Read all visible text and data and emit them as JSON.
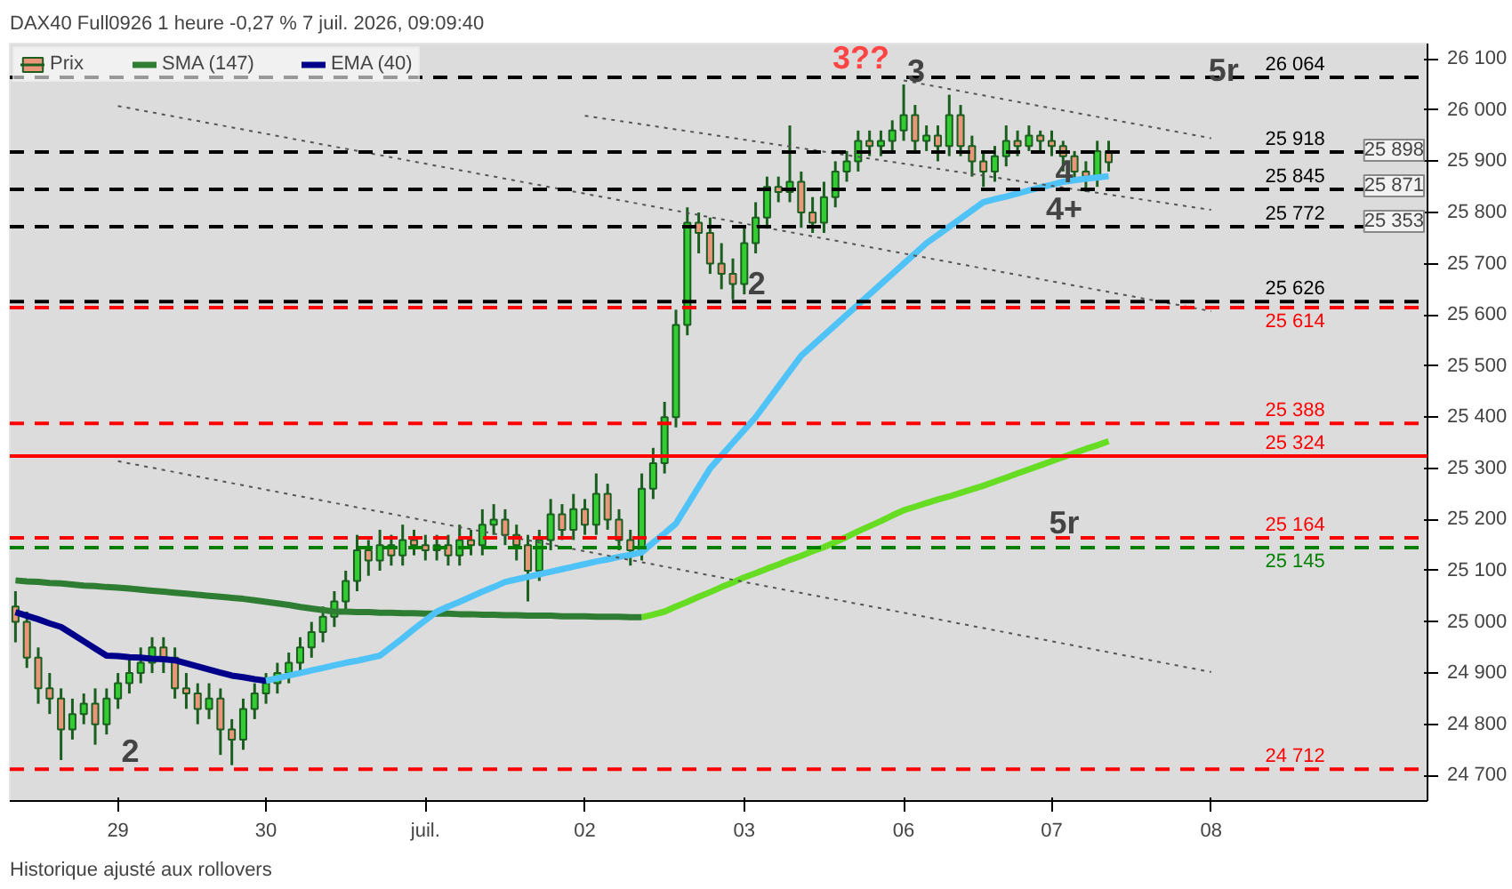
{
  "chart_data": {
    "type": "candlestick",
    "title": "DAX40 Full0926 1 heure -0,27 % 7 juil. 2026, 09:09:40",
    "categories": [
      null,
      null,
      null,
      null,
      null,
      null,
      null,
      null,
      null,
      "29",
      null,
      null,
      null,
      null,
      null,
      null,
      null,
      null,
      null,
      null,
      null,
      null,
      "30",
      null,
      null,
      null,
      null,
      null,
      null,
      null,
      null,
      null,
      null,
      null,
      null,
      null,
      "juil.",
      null,
      null,
      null,
      null,
      null,
      null,
      null,
      null,
      null,
      null,
      null,
      null,
      null,
      "02",
      null,
      null,
      null,
      null,
      null,
      null,
      null,
      null,
      null,
      null,
      null,
      null,
      null,
      "03",
      null,
      null,
      null,
      null,
      null,
      null,
      null,
      null,
      null,
      null,
      null,
      null,
      null,
      "06",
      null,
      null,
      null,
      null,
      null,
      null,
      null,
      null,
      null,
      null,
      null,
      null,
      "07",
      null,
      null,
      null,
      null,
      null,
      null,
      null,
      null,
      null,
      null,
      null,
      null,
      null,
      "08"
    ],
    "ylim": [
      24650,
      26130
    ],
    "yticks": [
      {
        "value": 24700,
        "label": "24 700"
      },
      {
        "value": 24800,
        "label": "24 800"
      },
      {
        "value": 24900,
        "label": "24 900"
      },
      {
        "value": 25000,
        "label": "25 000"
      },
      {
        "value": 25100,
        "label": "25 100"
      },
      {
        "value": 25200,
        "label": "25 200"
      },
      {
        "value": 25300,
        "label": "25 300"
      },
      {
        "value": 25400,
        "label": "25 400"
      },
      {
        "value": 25500,
        "label": "25 500"
      },
      {
        "value": 25600,
        "label": "25 600"
      },
      {
        "value": 25700,
        "label": "25 700"
      },
      {
        "value": 25800,
        "label": "25 800"
      },
      {
        "value": 25900,
        "label": "25 900"
      },
      {
        "value": 26000,
        "label": "26 000"
      },
      {
        "value": 26100,
        "label": "26 100"
      }
    ],
    "legend": "top left",
    "series": [
      {
        "name": "Prix",
        "color": "#1b5e20",
        "colors": [
          "#e9967a",
          "#e9967a",
          "#e9967a",
          "#e9967a",
          "#e9967a",
          "#33cc33",
          "#33cc33",
          "#e9967a",
          "#33cc33",
          "#33cc33",
          "#33cc33",
          "#33cc33",
          "#33cc33",
          "#e9967a",
          "#e9967a",
          "#e9967a",
          "#e9967a",
          "#33cc33",
          "#e9967a",
          "#e9967a",
          "#33cc33",
          "#33cc33",
          "#33cc33",
          "#33cc33",
          "#33cc33",
          "#33cc33",
          "#33cc33",
          "#33cc33",
          "#33cc33",
          "#33cc33",
          "#33cc33",
          "#e9967a",
          "#33cc33",
          "#e9967a",
          "#33cc33",
          "#e9967a",
          "#e9967a",
          "#33cc33",
          "#e9967a",
          "#33cc33",
          "#e9967a",
          "#33cc33",
          "#33cc33",
          "#e9967a",
          "#e9967a",
          "#e9967a",
          "#33cc33",
          "#33cc33",
          "#e9967a",
          "#33cc33",
          "#e9967a",
          "#33cc33",
          "#e9967a",
          "#e9967a",
          "#e9967a",
          "#33cc33",
          "#33cc33",
          "#33cc33",
          "#33cc33",
          "#33cc33",
          "#e9967a",
          "#e9967a",
          "#e9967a",
          "#e9967a",
          "#33cc33",
          "#33cc33",
          "#33cc33",
          "#e9967a",
          "#33cc33",
          "#e9967a",
          "#e9967a",
          "#33cc33",
          "#33cc33",
          "#33cc33",
          "#33cc33",
          "#e9967a",
          "#33cc33",
          "#33cc33",
          "#33cc33",
          "#e9967a",
          "#33cc33",
          "#e9967a",
          "#33cc33",
          "#e9967a",
          "#e9967a",
          "#e9967a",
          "#33cc33",
          "#33cc33",
          "#e9967a",
          "#33cc33",
          "#e9967a",
          "#e9967a",
          "#e9967a",
          "#e9967a",
          "#e9967a",
          "#33cc33",
          "#e9967a",
          null,
          null,
          null,
          null,
          null,
          null,
          null,
          null,
          null
        ],
        "ohlc": [
          [
            25030,
            25060,
            24960,
            25000
          ],
          [
            25000,
            25020,
            24910,
            24930
          ],
          [
            24930,
            24950,
            24840,
            24870
          ],
          [
            24870,
            24900,
            24820,
            24850
          ],
          [
            24850,
            24870,
            24730,
            24790
          ],
          [
            24790,
            24850,
            24770,
            24820
          ],
          [
            24820,
            24860,
            24800,
            24840
          ],
          [
            24840,
            24870,
            24760,
            24800
          ],
          [
            24800,
            24870,
            24780,
            24850
          ],
          [
            24850,
            24900,
            24830,
            24880
          ],
          [
            24880,
            24930,
            24860,
            24900
          ],
          [
            24900,
            24950,
            24880,
            24920
          ],
          [
            24920,
            24970,
            24900,
            24950
          ],
          [
            24950,
            24970,
            24900,
            24930
          ],
          [
            24930,
            24950,
            24850,
            24870
          ],
          [
            24870,
            24900,
            24830,
            24860
          ],
          [
            24860,
            24880,
            24800,
            24830
          ],
          [
            24830,
            24880,
            24810,
            24850
          ],
          [
            24850,
            24870,
            24740,
            24790
          ],
          [
            24790,
            24810,
            24720,
            24770
          ],
          [
            24770,
            24850,
            24750,
            24830
          ],
          [
            24830,
            24880,
            24810,
            24860
          ],
          [
            24860,
            24900,
            24840,
            24880
          ],
          [
            24880,
            24920,
            24860,
            24900
          ],
          [
            24900,
            24940,
            24880,
            24920
          ],
          [
            24920,
            24970,
            24900,
            24950
          ],
          [
            24950,
            25000,
            24930,
            24980
          ],
          [
            24980,
            25030,
            24960,
            25010
          ],
          [
            25010,
            25060,
            24990,
            25040
          ],
          [
            25040,
            25100,
            25020,
            25080
          ],
          [
            25080,
            25170,
            25060,
            25140
          ],
          [
            25140,
            25160,
            25090,
            25120
          ],
          [
            25120,
            25180,
            25100,
            25150
          ],
          [
            25150,
            25170,
            25110,
            25130
          ],
          [
            25130,
            25190,
            25110,
            25160
          ],
          [
            25160,
            25180,
            25130,
            25150
          ],
          [
            25150,
            25170,
            25120,
            25140
          ],
          [
            25140,
            25170,
            25120,
            25150
          ],
          [
            25150,
            25170,
            25110,
            25130
          ],
          [
            25130,
            25190,
            25110,
            25160
          ],
          [
            25160,
            25180,
            25130,
            25150
          ],
          [
            25150,
            25220,
            25130,
            25190
          ],
          [
            25190,
            25230,
            25170,
            25200
          ],
          [
            25200,
            25220,
            25150,
            25170
          ],
          [
            25170,
            25190,
            25120,
            25150
          ],
          [
            25150,
            25170,
            25040,
            25100
          ],
          [
            25100,
            25180,
            25080,
            25160
          ],
          [
            25160,
            25240,
            25140,
            25210
          ],
          [
            25210,
            25230,
            25160,
            25180
          ],
          [
            25180,
            25250,
            25160,
            25220
          ],
          [
            25220,
            25240,
            25170,
            25190
          ],
          [
            25190,
            25290,
            25170,
            25250
          ],
          [
            25250,
            25270,
            25180,
            25200
          ],
          [
            25200,
            25220,
            25140,
            25160
          ],
          [
            25160,
            25180,
            25110,
            25140
          ],
          [
            25140,
            25290,
            25120,
            25260
          ],
          [
            25260,
            25340,
            25240,
            25310
          ],
          [
            25310,
            25430,
            25290,
            25400
          ],
          [
            25400,
            25610,
            25380,
            25580
          ],
          [
            25580,
            25810,
            25560,
            25780
          ],
          [
            25780,
            25800,
            25720,
            25760
          ],
          [
            25760,
            25790,
            25680,
            25700
          ],
          [
            25700,
            25740,
            25650,
            25680
          ],
          [
            25680,
            25710,
            25630,
            25660
          ],
          [
            25660,
            25770,
            25640,
            25740
          ],
          [
            25740,
            25820,
            25720,
            25790
          ],
          [
            25790,
            25870,
            25770,
            25850
          ],
          [
            25850,
            25870,
            25820,
            25840
          ],
          [
            25840,
            25970,
            25820,
            25860
          ],
          [
            25860,
            25880,
            25770,
            25800
          ],
          [
            25800,
            25830,
            25760,
            25780
          ],
          [
            25780,
            25860,
            25760,
            25830
          ],
          [
            25830,
            25900,
            25810,
            25880
          ],
          [
            25880,
            25920,
            25860,
            25900
          ],
          [
            25900,
            25960,
            25880,
            25940
          ],
          [
            25940,
            25960,
            25910,
            25930
          ],
          [
            25930,
            25960,
            25910,
            25940
          ],
          [
            25940,
            25980,
            25920,
            25960
          ],
          [
            25960,
            26050,
            25940,
            25990
          ],
          [
            25990,
            26010,
            25920,
            25940
          ],
          [
            25940,
            25970,
            25920,
            25950
          ],
          [
            25950,
            25970,
            25900,
            25930
          ],
          [
            25930,
            26030,
            25910,
            25990
          ],
          [
            25990,
            26010,
            25910,
            25930
          ],
          [
            25930,
            25950,
            25870,
            25900
          ],
          [
            25900,
            25920,
            25850,
            25880
          ],
          [
            25880,
            25930,
            25860,
            25910
          ],
          [
            25910,
            25970,
            25890,
            25940
          ],
          [
            25940,
            25960,
            25910,
            25930
          ],
          [
            25930,
            25970,
            25920,
            25950
          ],
          [
            25950,
            25960,
            25920,
            25940
          ],
          [
            25940,
            25960,
            25910,
            25930
          ],
          [
            25930,
            25940,
            25880,
            25910
          ],
          [
            25910,
            25920,
            25860,
            25880
          ],
          [
            25880,
            25900,
            25840,
            25870
          ],
          [
            25870,
            25940,
            25850,
            25920
          ],
          [
            25920,
            25940,
            25880,
            25898
          ],
          null,
          null,
          null,
          null,
          null,
          null,
          null,
          null,
          null
        ]
      },
      {
        "name": "SMA (147)",
        "type": "line",
        "color": "#2e7d32",
        "values": [
          25081,
          25079,
          25078,
          25076,
          25075,
          25073,
          25071,
          25070,
          25068,
          25067,
          25065,
          25063,
          25061,
          25059,
          25057,
          25055,
          25053,
          25051,
          25049,
          25047,
          25045,
          25042,
          25039,
          25036,
          25033,
          25029,
          25026,
          25023,
          25020,
          25020,
          25019,
          25019,
          25018,
          25018,
          25017,
          25017,
          25016,
          25016,
          25016,
          25015,
          25015,
          25014,
          25014,
          25013,
          25013,
          25012,
          25012,
          25012,
          25011,
          25011,
          25011,
          25010,
          25010,
          25010,
          25009,
          25009,
          null,
          null,
          null,
          null,
          null,
          null,
          null,
          null,
          null,
          null,
          null,
          null,
          null,
          null,
          null,
          null,
          null,
          null,
          null,
          null,
          null,
          null,
          null,
          null,
          null,
          null,
          null,
          null,
          null,
          null,
          null,
          null,
          null,
          null,
          null,
          null,
          null,
          null,
          null,
          null,
          null,
          null,
          null,
          null,
          null,
          null,
          null,
          null,
          null,
          null
        ]
      },
      {
        "type": "line",
        "color": "#66dd22",
        "values": [
          null,
          null,
          null,
          null,
          null,
          null,
          null,
          null,
          null,
          null,
          null,
          null,
          null,
          null,
          null,
          null,
          null,
          null,
          null,
          null,
          null,
          null,
          null,
          null,
          null,
          null,
          null,
          null,
          null,
          null,
          null,
          null,
          null,
          null,
          null,
          null,
          null,
          null,
          null,
          null,
          null,
          null,
          null,
          null,
          null,
          null,
          null,
          null,
          null,
          null,
          null,
          null,
          null,
          null,
          null,
          25009,
          25014,
          25020,
          25030,
          25039,
          25049,
          25058,
          25068,
          25077,
          25087,
          25095,
          25104,
          25112,
          25121,
          25129,
          25138,
          25146,
          25156,
          25166,
          25177,
          25187,
          25197,
          25208,
          25218,
          25225,
          25232,
          25239,
          25245,
          25252,
          25259,
          25266,
          25274,
          25282,
          25290,
          25298,
          25306,
          25314,
          25322,
          25330,
          25338,
          25345,
          25353,
          null,
          null,
          null,
          null,
          null,
          null,
          null,
          null,
          null
        ]
      },
      {
        "name": "EMA (40)",
        "type": "line",
        "color": "#00008b",
        "values": [
          25019,
          25012,
          25005,
          24997,
          24990,
          24976,
          24962,
          24948,
          24934,
          24933,
          24931,
          24930,
          24928,
          24927,
          24925,
          24919,
          24913,
          24907,
          24901,
          24895,
          24892,
          24888,
          24885,
          null,
          null,
          null,
          null,
          null,
          null,
          null,
          null,
          null,
          null,
          null,
          null,
          null,
          null,
          null,
          null,
          null,
          null,
          null,
          null,
          null,
          null,
          null,
          null,
          null,
          null,
          null,
          null,
          null,
          null,
          null,
          null,
          null,
          null,
          null,
          null,
          null,
          null,
          null,
          null,
          null,
          null,
          null,
          null,
          null,
          null,
          null,
          null,
          null,
          null,
          null,
          null,
          null,
          null,
          null,
          null,
          null,
          null,
          null,
          null,
          null,
          null,
          null,
          null,
          null,
          null,
          null,
          null,
          null,
          null,
          null,
          null,
          null,
          null,
          null,
          null,
          null,
          null,
          null,
          null,
          null,
          null,
          null
        ]
      },
      {
        "type": "line",
        "color": "#4fc3f7",
        "values": [
          null,
          null,
          null,
          null,
          null,
          null,
          null,
          null,
          null,
          null,
          null,
          null,
          null,
          null,
          null,
          null,
          null,
          null,
          null,
          null,
          null,
          null,
          24885,
          24890,
          24895,
          24900,
          24905,
          24910,
          24915,
          24920,
          24924,
          24929,
          24934,
          24951,
          24968,
          24986,
          25003,
          25020,
          25030,
          25039,
          25049,
          25059,
          25068,
          25078,
          25083,
          25088,
          25093,
          25098,
          25103,
          25108,
          25113,
          25118,
          25122,
          25127,
          25131,
          25136,
          25155,
          25173,
          25192,
          25228,
          25264,
          25300,
          25325,
          25350,
          25375,
          25400,
          25430,
          25460,
          25490,
          25520,
          25540,
          25560,
          25580,
          25600,
          25620,
          25640,
          25660,
          25680,
          25700,
          25720,
          25740,
          25756,
          25772,
          25788,
          25804,
          25820,
          25826,
          25831,
          25837,
          25843,
          25849,
          25854,
          25860,
          25863,
          25866,
          25868,
          25871,
          null,
          null,
          null,
          null,
          null,
          null,
          null,
          null,
          null
        ]
      },
      {
        "type": "line",
        "color": "#555555",
        "line_style": "dotted",
        "x": [
          "06",
          "08"
        ],
        "values": [
          26058,
          25945
        ]
      },
      {
        "type": "line",
        "color": "#555555",
        "line_style": "dotted",
        "x": [
          "02",
          "08"
        ],
        "values": [
          25989,
          25805
        ]
      },
      {
        "type": "line",
        "color": "#555555",
        "line_style": "dotted",
        "x": [
          "29",
          "08"
        ],
        "values": [
          26008,
          25607
        ]
      },
      {
        "type": "line",
        "color": "#555555",
        "line_style": "dotted",
        "x": [
          "29",
          "08"
        ],
        "values": [
          25314,
          24902
        ]
      }
    ],
    "ref_lines": [
      {
        "axis": "y",
        "value": 26064,
        "label": "26 064",
        "color": "#000000",
        "line_style": "dashed"
      },
      {
        "axis": "y",
        "value": 25918,
        "label": "25 918",
        "color": "#000000",
        "line_style": "dashed"
      },
      {
        "axis": "y",
        "value": 25845,
        "label": "25 845",
        "color": "#000000",
        "line_style": "dashed"
      },
      {
        "axis": "y",
        "value": 25772,
        "label": "25 772",
        "color": "#000000",
        "line_style": "dashed"
      },
      {
        "axis": "y",
        "value": 25626,
        "label": "25 626",
        "color": "#000000",
        "line_style": "dashed"
      },
      {
        "axis": "y",
        "value": 25614,
        "label": "25 614",
        "color": "#ff0000",
        "line_style": "dashed"
      },
      {
        "axis": "y",
        "value": 25388,
        "label": "25 388",
        "color": "#ff0000",
        "line_style": "dashed"
      },
      {
        "axis": "y",
        "value": 25324,
        "label": "25 324",
        "color": "#ff0000",
        "line_style": "solid"
      },
      {
        "axis": "y",
        "value": 25164,
        "label": "25 164",
        "color": "#ff0000",
        "line_style": "dashed"
      },
      {
        "axis": "y",
        "value": 25145,
        "label": "25 145",
        "color": "#008000",
        "line_style": "dashed"
      },
      {
        "axis": "y",
        "value": 24712,
        "label": "24 712",
        "color": "#ff0000",
        "line_style": "dashed"
      }
    ],
    "annotations": [
      {
        "text": "2",
        "x": "29",
        "y": 24712
      },
      {
        "text": "2",
        "x": "03",
        "y": 25626
      },
      {
        "text": "3??",
        "y": 26064
      },
      {
        "text": "3",
        "x": "06",
        "y": 26064
      },
      {
        "text": "4",
        "x": "07",
        "y": 25845
      },
      {
        "text": "4+",
        "x": "07",
        "y": 25772
      },
      {
        "text": "5r",
        "x": "08",
        "y": 26064
      },
      {
        "text": "5r",
        "x": "07",
        "y": 25145
      },
      "25 898",
      "25 871",
      "25 353",
      "Historique ajusté aux rollovers"
    ]
  }
}
